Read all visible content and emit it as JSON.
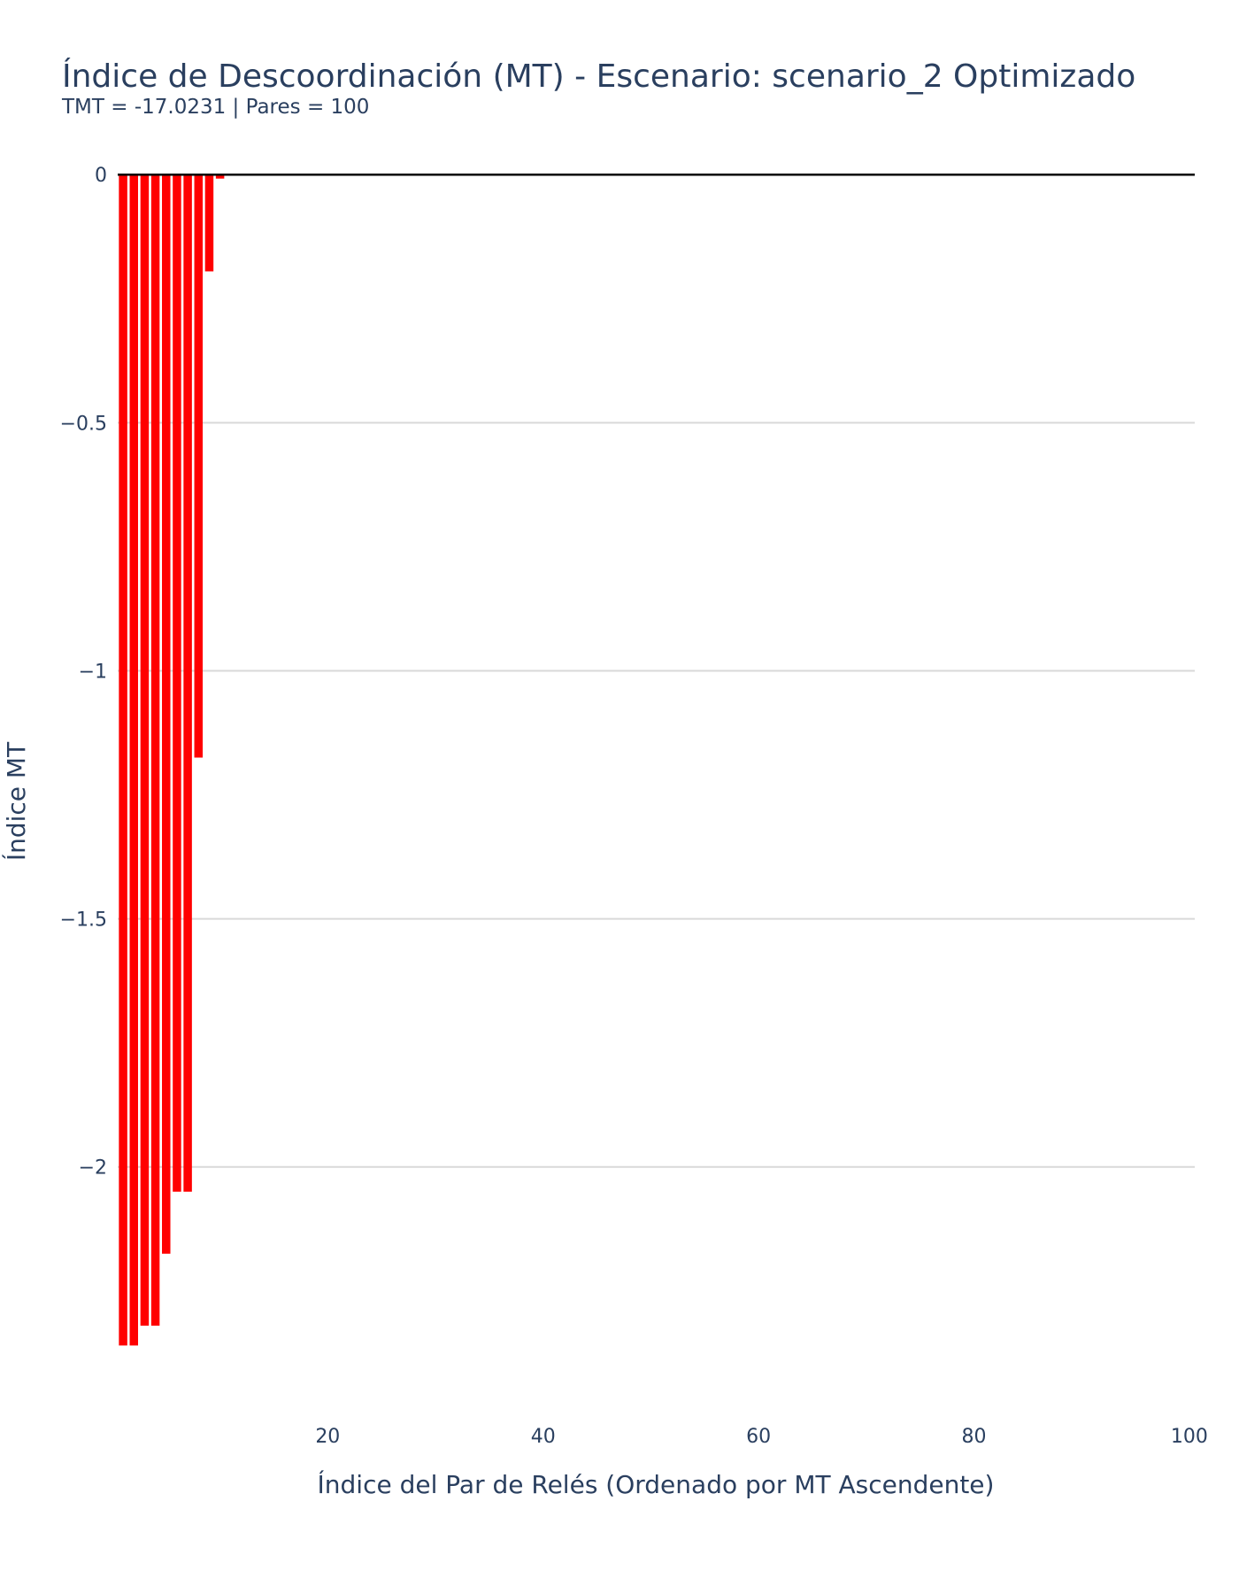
{
  "chart_data": {
    "type": "bar",
    "title": "Índice de Descoordinación (MT) - Escenario: scenario_2 Optimizado",
    "subtitle": "TMT = -17.0231 | Pares = 100",
    "xlabel": "Índice del Par de Relés (Ordenado por MT Ascendente)",
    "ylabel": "Índice MT",
    "xlim": [
      0.5,
      100.5
    ],
    "ylim": [
      -2.42,
      0.02
    ],
    "xticks": [
      20,
      40,
      60,
      80,
      100
    ],
    "yticks": [
      0,
      -0.5,
      -1,
      -1.5,
      -2
    ],
    "ytick_labels": [
      "0",
      "−0.5",
      "−1",
      "−1.5",
      "−2"
    ],
    "grid": true,
    "bar_color": "#ff0000",
    "zero_line_color": "#000000",
    "x": [
      1,
      2,
      3,
      4,
      5,
      6,
      7,
      8,
      9,
      10,
      11,
      12,
      13,
      14,
      15,
      16,
      17,
      18,
      19,
      20,
      21,
      22,
      23,
      24,
      25,
      26,
      27,
      28,
      29,
      30,
      31,
      32,
      33,
      34,
      35,
      36,
      37,
      38,
      39,
      40,
      41,
      42,
      43,
      44,
      45,
      46,
      47,
      48,
      49,
      50,
      51,
      52,
      53,
      54,
      55,
      56,
      57,
      58,
      59,
      60,
      61,
      62,
      63,
      64,
      65,
      66,
      67,
      68,
      69,
      70,
      71,
      72,
      73,
      74,
      75,
      76,
      77,
      78,
      79,
      80,
      81,
      82,
      83,
      84,
      85,
      86,
      87,
      88,
      89,
      90,
      91,
      92,
      93,
      94,
      95,
      96,
      97,
      98,
      99,
      100
    ],
    "values": [
      -2.36,
      -2.36,
      -2.32,
      -2.32,
      -2.175,
      -2.05,
      -2.05,
      -1.175,
      -0.195,
      -0.008,
      0,
      0,
      0,
      0,
      0,
      0,
      0,
      0,
      0,
      0,
      0,
      0,
      0,
      0,
      0,
      0,
      0,
      0,
      0,
      0,
      0,
      0,
      0,
      0,
      0,
      0,
      0,
      0,
      0,
      0,
      0,
      0,
      0,
      0,
      0,
      0,
      0,
      0,
      0,
      0,
      0,
      0,
      0,
      0,
      0,
      0,
      0,
      0,
      0,
      0,
      0,
      0,
      0,
      0,
      0,
      0,
      0,
      0,
      0,
      0,
      0,
      0,
      0,
      0,
      0,
      0,
      0,
      0,
      0,
      0,
      0,
      0,
      0,
      0,
      0,
      0,
      0,
      0,
      0,
      0,
      0,
      0,
      0,
      0,
      0,
      0,
      0,
      0,
      0,
      0
    ]
  }
}
